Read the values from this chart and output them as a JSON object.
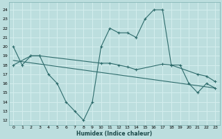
{
  "xlabel": "Humidex (Indice chaleur)",
  "xlim": [
    -0.5,
    23.5
  ],
  "ylim": [
    11.5,
    24.8
  ],
  "yticks": [
    12,
    13,
    14,
    15,
    16,
    17,
    18,
    19,
    20,
    21,
    22,
    23,
    24
  ],
  "xticks": [
    0,
    1,
    2,
    3,
    4,
    5,
    6,
    7,
    8,
    9,
    10,
    11,
    12,
    13,
    14,
    15,
    16,
    17,
    18,
    19,
    20,
    21,
    22,
    23
  ],
  "background_color": "#bcdede",
  "grid_color": "#d4eeee",
  "line_color": "#2d6b6b",
  "line1_x": [
    0,
    1,
    2,
    3,
    4,
    5,
    6,
    7,
    8,
    9,
    10,
    11,
    12,
    13,
    14,
    15,
    16,
    17,
    18,
    19,
    20,
    21,
    22,
    23
  ],
  "line1_y": [
    20,
    18,
    19,
    19,
    17,
    16,
    14,
    13,
    12,
    14,
    20,
    22,
    21.5,
    21.5,
    21,
    23,
    24,
    24,
    18,
    18,
    16,
    15,
    16,
    15.5
  ],
  "line1_markers": [
    0,
    1,
    2,
    3,
    4,
    5,
    6,
    7,
    8,
    9,
    10,
    11,
    12,
    13,
    14,
    15,
    16,
    17,
    18,
    19,
    20,
    21,
    22,
    23
  ],
  "line2_x": [
    0,
    2,
    3,
    10,
    11,
    12,
    13,
    14,
    17,
    18,
    21,
    22,
    23
  ],
  "line2_y": [
    18,
    19,
    19,
    18.2,
    18.2,
    18.0,
    17.8,
    17.5,
    18.1,
    18.0,
    17.0,
    16.8,
    16.2
  ],
  "line3_x": [
    0,
    23
  ],
  "line3_y": [
    18.5,
    15.5
  ]
}
